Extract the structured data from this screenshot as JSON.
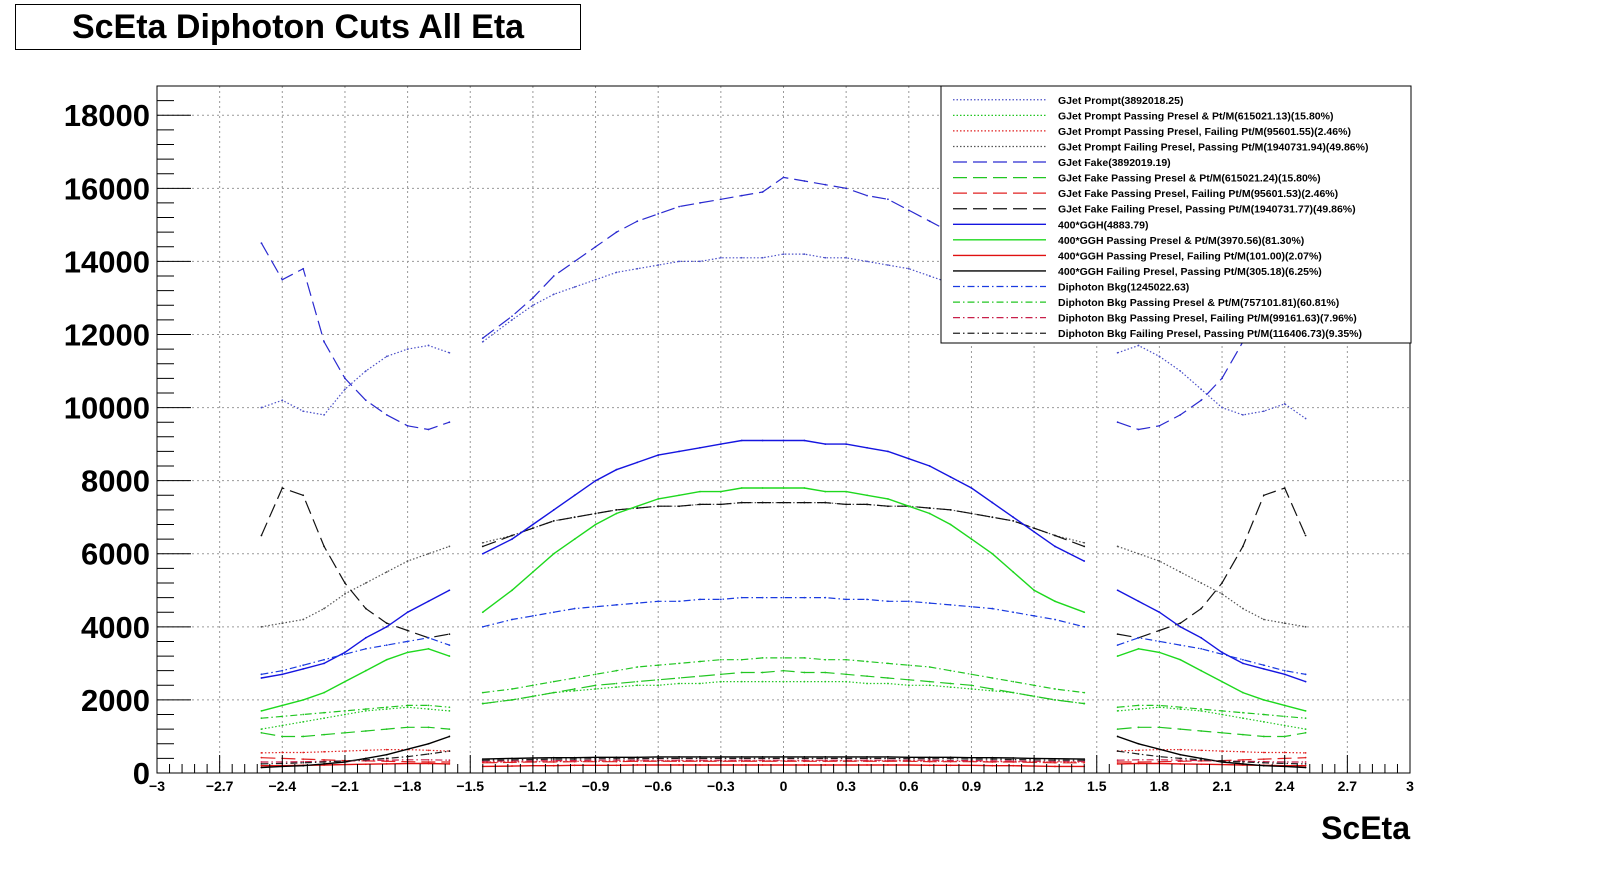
{
  "chart_data": {
    "type": "line",
    "title": "ScEta Diphoton Cuts All Eta",
    "xlabel": "ScEta",
    "ylabel": "",
    "xlim": [
      -3,
      3
    ],
    "ylim": [
      0,
      18800
    ],
    "grid": true,
    "legend_position": "top-right",
    "x_ticks": [
      -3,
      -2.7,
      -2.4,
      -2.1,
      -1.8,
      -1.5,
      -1.2,
      -0.9,
      -0.6,
      -0.3,
      0,
      0.3,
      0.6,
      0.9,
      1.2,
      1.5,
      1.8,
      2.1,
      2.4,
      2.7,
      3
    ],
    "x_tick_labels": [
      "−3",
      "−2.7",
      "−2.4",
      "−2.1",
      "−1.8",
      "−1.5",
      "−1.2",
      "−0.9",
      "−0.6",
      "−0.3",
      "0",
      "0.3",
      "0.6",
      "0.9",
      "1.2",
      "1.5",
      "1.8",
      "2.1",
      "2.4",
      "2.7",
      "3"
    ],
    "y_ticks": [
      0,
      2000,
      4000,
      6000,
      8000,
      10000,
      12000,
      14000,
      16000,
      18000
    ],
    "y_tick_labels": [
      "0",
      "2000",
      "4000",
      "6000",
      "8000",
      "10000",
      "12000",
      "14000",
      "16000",
      "18000"
    ],
    "x": [
      -2.5,
      -2.4,
      -2.3,
      -2.2,
      -2.1,
      -2.0,
      -1.9,
      -1.8,
      -1.7,
      -1.6,
      -1.5,
      -1.44,
      -1.3,
      -1.2,
      -1.1,
      -1.0,
      -0.9,
      -0.8,
      -0.7,
      -0.6,
      -0.5,
      -0.4,
      -0.3,
      -0.2,
      -0.1,
      0.0,
      0.1,
      0.2,
      0.3,
      0.4,
      0.5,
      0.6,
      0.7,
      0.8,
      0.9,
      1.0,
      1.1,
      1.2,
      1.3,
      1.44,
      1.5,
      1.6,
      1.7,
      1.8,
      1.9,
      2.0,
      2.1,
      2.2,
      2.3,
      2.4,
      2.5
    ],
    "series": [
      {
        "name": "GJet Prompt(3892018.25)",
        "color": "#4b50c8",
        "style": "dotted",
        "values": [
          10000,
          10200,
          9900,
          9800,
          10500,
          11000,
          11400,
          11600,
          11700,
          11500,
          null,
          11800,
          12400,
          12800,
          13100,
          13300,
          13500,
          13700,
          13800,
          13900,
          14000,
          14000,
          14100,
          14100,
          14100,
          14200,
          14200,
          14100,
          14100,
          14000,
          13900,
          13800,
          13600,
          13400,
          13200,
          12900,
          12600,
          12200,
          null,
          null,
          null,
          11500,
          11700,
          11400,
          11000,
          10500,
          10000,
          9800,
          9900,
          10100,
          9700
        ]
      },
      {
        "name": "GJet Prompt Passing Presel & Pt/M(615021.13)(15.80%)",
        "color": "#22c622",
        "style": "dotted",
        "values": [
          1200,
          1300,
          1400,
          1500,
          1600,
          1700,
          1750,
          1800,
          1750,
          1700,
          null,
          1900,
          2000,
          2100,
          2200,
          2250,
          2300,
          2350,
          2400,
          2400,
          2450,
          2450,
          2500,
          2500,
          2500,
          2500,
          2500,
          2500,
          2500,
          2450,
          2450,
          2400,
          2400,
          2350,
          2300,
          2250,
          2200,
          2100,
          2000,
          1900,
          null,
          1700,
          1750,
          1800,
          1750,
          1700,
          1600,
          1500,
          1400,
          1300,
          1200
        ]
      },
      {
        "name": "GJet Prompt Passing Presel, Failing Pt/M(95601.55)(2.46%)",
        "color": "#e02020",
        "style": "dotted",
        "values": [
          550,
          560,
          560,
          580,
          600,
          620,
          640,
          640,
          620,
          600,
          null,
          300,
          300,
          310,
          310,
          320,
          320,
          320,
          330,
          330,
          330,
          330,
          330,
          330,
          330,
          330,
          330,
          330,
          330,
          330,
          330,
          330,
          320,
          320,
          320,
          310,
          310,
          300,
          300,
          300,
          null,
          600,
          620,
          640,
          640,
          620,
          600,
          580,
          560,
          560,
          550
        ]
      },
      {
        "name": "GJet Prompt Failing Presel, Passing Pt/M(1940731.94)(49.86%)",
        "color": "#555555",
        "style": "dotted",
        "values": [
          4000,
          4100,
          4200,
          4500,
          4900,
          5200,
          5500,
          5800,
          6000,
          6200,
          null,
          6300,
          6500,
          6700,
          6900,
          7000,
          7100,
          7200,
          7250,
          7300,
          7300,
          7350,
          7350,
          7400,
          7400,
          7400,
          7400,
          7400,
          7350,
          7350,
          7300,
          7300,
          7250,
          7200,
          7100,
          7000,
          6900,
          6700,
          6500,
          6300,
          null,
          6200,
          6000,
          5800,
          5500,
          5200,
          4900,
          4500,
          4200,
          4100,
          4000
        ]
      },
      {
        "name": "GJet Fake(3892019.19)",
        "color": "#2a2ad0",
        "style": "long-dash",
        "values": [
          14500,
          13500,
          13800,
          11800,
          10800,
          10200,
          9800,
          9500,
          9400,
          9600,
          null,
          11900,
          12500,
          13000,
          13600,
          14000,
          14400,
          14800,
          15100,
          15300,
          15500,
          15600,
          15700,
          15800,
          15900,
          16300,
          16200,
          16100,
          16000,
          15800,
          15700,
          15400,
          15100,
          14800,
          14200,
          13600,
          13000,
          12500,
          11900,
          11800,
          null,
          9600,
          9400,
          9500,
          9800,
          10200,
          10800,
          11800,
          13800,
          13500,
          14500
        ]
      },
      {
        "name": "GJet Fake Passing Presel & Pt/M(615021.24)(15.80%)",
        "color": "#22c622",
        "style": "long-dash",
        "values": [
          1100,
          1000,
          1000,
          1050,
          1100,
          1150,
          1200,
          1250,
          1250,
          1200,
          null,
          1900,
          2000,
          2100,
          2200,
          2300,
          2400,
          2450,
          2500,
          2550,
          2600,
          2650,
          2700,
          2750,
          2750,
          2800,
          2750,
          2750,
          2700,
          2650,
          2600,
          2550,
          2500,
          2450,
          2400,
          2300,
          2200,
          2100,
          2000,
          1900,
          null,
          1200,
          1250,
          1250,
          1200,
          1150,
          1100,
          1050,
          1000,
          1000,
          1100
        ]
      },
      {
        "name": "GJet Fake Passing Presel, Failing Pt/M(95601.53)(2.46%)",
        "color": "#e02020",
        "style": "long-dash",
        "values": [
          420,
          400,
          380,
          360,
          340,
          330,
          320,
          310,
          300,
          300,
          null,
          280,
          290,
          300,
          300,
          310,
          310,
          310,
          320,
          320,
          320,
          320,
          320,
          320,
          320,
          320,
          320,
          320,
          320,
          320,
          320,
          320,
          310,
          310,
          310,
          300,
          300,
          290,
          280,
          280,
          null,
          300,
          300,
          310,
          320,
          330,
          340,
          360,
          380,
          400,
          420
        ]
      },
      {
        "name": "GJet Fake Failing Presel, Passing Pt/M(1940731.77)(49.86%)",
        "color": "#111111",
        "style": "long-dash",
        "values": [
          6500,
          7800,
          7600,
          6200,
          5200,
          4500,
          4100,
          3900,
          3700,
          3800,
          null,
          6200,
          6500,
          6700,
          6900,
          7000,
          7100,
          7200,
          7250,
          7300,
          7300,
          7350,
          7350,
          7400,
          7400,
          7400,
          7400,
          7400,
          7350,
          7350,
          7300,
          7300,
          7250,
          7200,
          7100,
          7000,
          6900,
          6700,
          6500,
          6200,
          null,
          3800,
          3700,
          3900,
          4100,
          4500,
          5200,
          6200,
          7600,
          7800,
          6500
        ]
      },
      {
        "name": "400*GGH(4883.79)",
        "color": "#1515e0",
        "style": "solid",
        "values": [
          2600,
          2700,
          2850,
          3000,
          3300,
          3700,
          4000,
          4400,
          4700,
          5000,
          null,
          6000,
          6400,
          6800,
          7200,
          7600,
          8000,
          8300,
          8500,
          8700,
          8800,
          8900,
          9000,
          9100,
          9100,
          9100,
          9100,
          9000,
          9000,
          8900,
          8800,
          8600,
          8400,
          8100,
          7800,
          7400,
          7000,
          6600,
          6200,
          5800,
          null,
          5000,
          4700,
          4400,
          4000,
          3700,
          3300,
          3000,
          2850,
          2700,
          2500
        ]
      },
      {
        "name": "400*GGH Passing Presel & Pt/M(3970.56)(81.30%)",
        "color": "#1ed81e",
        "style": "solid",
        "values": [
          1700,
          1850,
          2000,
          2200,
          2500,
          2800,
          3100,
          3300,
          3400,
          3200,
          null,
          4400,
          5000,
          5500,
          6000,
          6400,
          6800,
          7100,
          7300,
          7500,
          7600,
          7700,
          7700,
          7800,
          7800,
          7800,
          7800,
          7700,
          7700,
          7600,
          7500,
          7300,
          7100,
          6800,
          6400,
          6000,
          5500,
          5000,
          4700,
          4400,
          null,
          3200,
          3400,
          3300,
          3100,
          2800,
          2500,
          2200,
          2000,
          1850,
          1700
        ]
      },
      {
        "name": "400*GGH Passing Presel, Failing Pt/M(101.00)(2.07%)",
        "color": "#e01010",
        "style": "solid",
        "values": [
          200,
          200,
          210,
          220,
          230,
          240,
          250,
          260,
          260,
          250,
          null,
          180,
          190,
          200,
          200,
          210,
          210,
          210,
          220,
          220,
          220,
          220,
          220,
          220,
          220,
          220,
          220,
          220,
          220,
          220,
          220,
          220,
          210,
          210,
          210,
          200,
          200,
          190,
          180,
          180,
          null,
          250,
          260,
          260,
          250,
          240,
          230,
          220,
          210,
          200,
          200
        ]
      },
      {
        "name": "400*GGH Failing Presel, Passing Pt/M(305.18)(6.25%)",
        "color": "#000000",
        "style": "solid",
        "values": [
          150,
          180,
          200,
          250,
          300,
          400,
          500,
          650,
          800,
          1000,
          null,
          380,
          400,
          410,
          420,
          420,
          430,
          430,
          430,
          440,
          440,
          440,
          440,
          440,
          440,
          440,
          440,
          440,
          440,
          440,
          440,
          430,
          430,
          430,
          420,
          420,
          410,
          400,
          390,
          380,
          null,
          1000,
          800,
          650,
          500,
          400,
          300,
          250,
          200,
          180,
          150
        ]
      },
      {
        "name": "Diphoton Bkg(1245022.63)",
        "color": "#1a3be0",
        "style": "dash-dot",
        "values": [
          2700,
          2800,
          2950,
          3100,
          3250,
          3400,
          3500,
          3600,
          3700,
          3500,
          null,
          4000,
          4200,
          4300,
          4400,
          4500,
          4550,
          4600,
          4650,
          4700,
          4700,
          4750,
          4750,
          4800,
          4800,
          4800,
          4800,
          4800,
          4750,
          4750,
          4700,
          4700,
          4650,
          4600,
          4550,
          4500,
          4400,
          4300,
          4200,
          4000,
          null,
          3500,
          3700,
          3600,
          3500,
          3400,
          3250,
          3100,
          2950,
          2800,
          2700
        ]
      },
      {
        "name": "Diphoton Bkg Passing Presel & Pt/M(757101.81)(60.81%)",
        "color": "#22c622",
        "style": "dash-dot",
        "values": [
          1500,
          1550,
          1600,
          1650,
          1700,
          1750,
          1800,
          1850,
          1850,
          1800,
          null,
          2200,
          2300,
          2400,
          2500,
          2600,
          2700,
          2800,
          2900,
          2950,
          3000,
          3050,
          3100,
          3100,
          3150,
          3150,
          3150,
          3100,
          3100,
          3050,
          3000,
          2950,
          2900,
          2800,
          2700,
          2600,
          2500,
          2400,
          2300,
          2200,
          null,
          1800,
          1850,
          1850,
          1800,
          1750,
          1700,
          1650,
          1600,
          1550,
          1500
        ]
      },
      {
        "name": "Diphoton Bkg Passing Presel, Failing Pt/M(99161.63)(7.96%)",
        "color": "#c8204a",
        "style": "dash-dot",
        "values": [
          300,
          300,
          310,
          320,
          330,
          340,
          350,
          360,
          360,
          350,
          null,
          320,
          330,
          330,
          340,
          340,
          350,
          350,
          350,
          350,
          350,
          350,
          350,
          350,
          350,
          350,
          350,
          350,
          350,
          350,
          350,
          350,
          350,
          340,
          340,
          330,
          330,
          320,
          320,
          320,
          null,
          350,
          360,
          360,
          350,
          340,
          330,
          320,
          310,
          300,
          300
        ]
      },
      {
        "name": "Diphoton Bkg Failing Presel, Passing Pt/M(116406.73)(9.35%)",
        "color": "#222222",
        "style": "dash-dot",
        "values": [
          250,
          260,
          280,
          300,
          330,
          360,
          400,
          450,
          520,
          600,
          null,
          350,
          360,
          370,
          380,
          380,
          390,
          390,
          390,
          400,
          400,
          400,
          400,
          400,
          400,
          400,
          400,
          400,
          400,
          400,
          400,
          390,
          390,
          390,
          380,
          380,
          370,
          360,
          350,
          350,
          null,
          600,
          520,
          450,
          400,
          360,
          330,
          300,
          280,
          260,
          250
        ]
      }
    ]
  }
}
